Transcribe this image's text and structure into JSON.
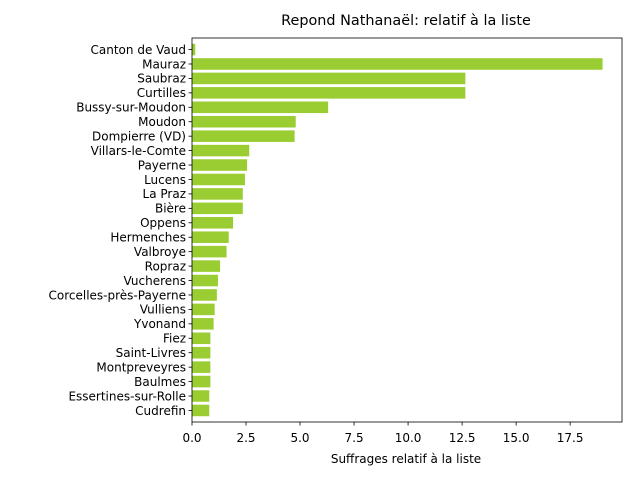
{
  "chart_data": {
    "type": "bar",
    "orientation": "horizontal",
    "title": "Repond Nathanaël: relatif à la liste",
    "xlabel": "Suffrages relatif à la liste",
    "ylabel": "",
    "xlim": [
      0,
      19.9
    ],
    "xticks": [
      0,
      2.5,
      5,
      7.5,
      10,
      12.5,
      15,
      17.5
    ],
    "xtick_labels": [
      "0.0",
      "2.5",
      "5.0",
      "7.5",
      "10.0",
      "12.5",
      "15.0",
      "17.5"
    ],
    "grid": false,
    "bar_color": "#9acd32",
    "categories": [
      "Canton de Vaud",
      "Mauraz",
      "Saubraz",
      "Curtilles",
      "Bussy-sur-Moudon",
      "Moudon",
      "Dompierre (VD)",
      "Villars-le-Comte",
      "Payerne",
      "Lucens",
      "La Praz",
      "Bière",
      "Oppens",
      "Hermenches",
      "Valbroye",
      "Ropraz",
      "Vucherens",
      "Corcelles-près-Payerne",
      "Vulliens",
      "Yvonand",
      "Fiez",
      "Saint-Livres",
      "Montpreveyres",
      "Baulmes",
      "Essertines-sur-Rolle",
      "Cudrefin"
    ],
    "values": [
      0.15,
      19.0,
      12.65,
      12.65,
      6.3,
      4.8,
      4.75,
      2.65,
      2.55,
      2.45,
      2.35,
      2.35,
      1.9,
      1.7,
      1.6,
      1.3,
      1.2,
      1.15,
      1.05,
      1.0,
      0.85,
      0.85,
      0.85,
      0.85,
      0.8,
      0.8
    ]
  }
}
